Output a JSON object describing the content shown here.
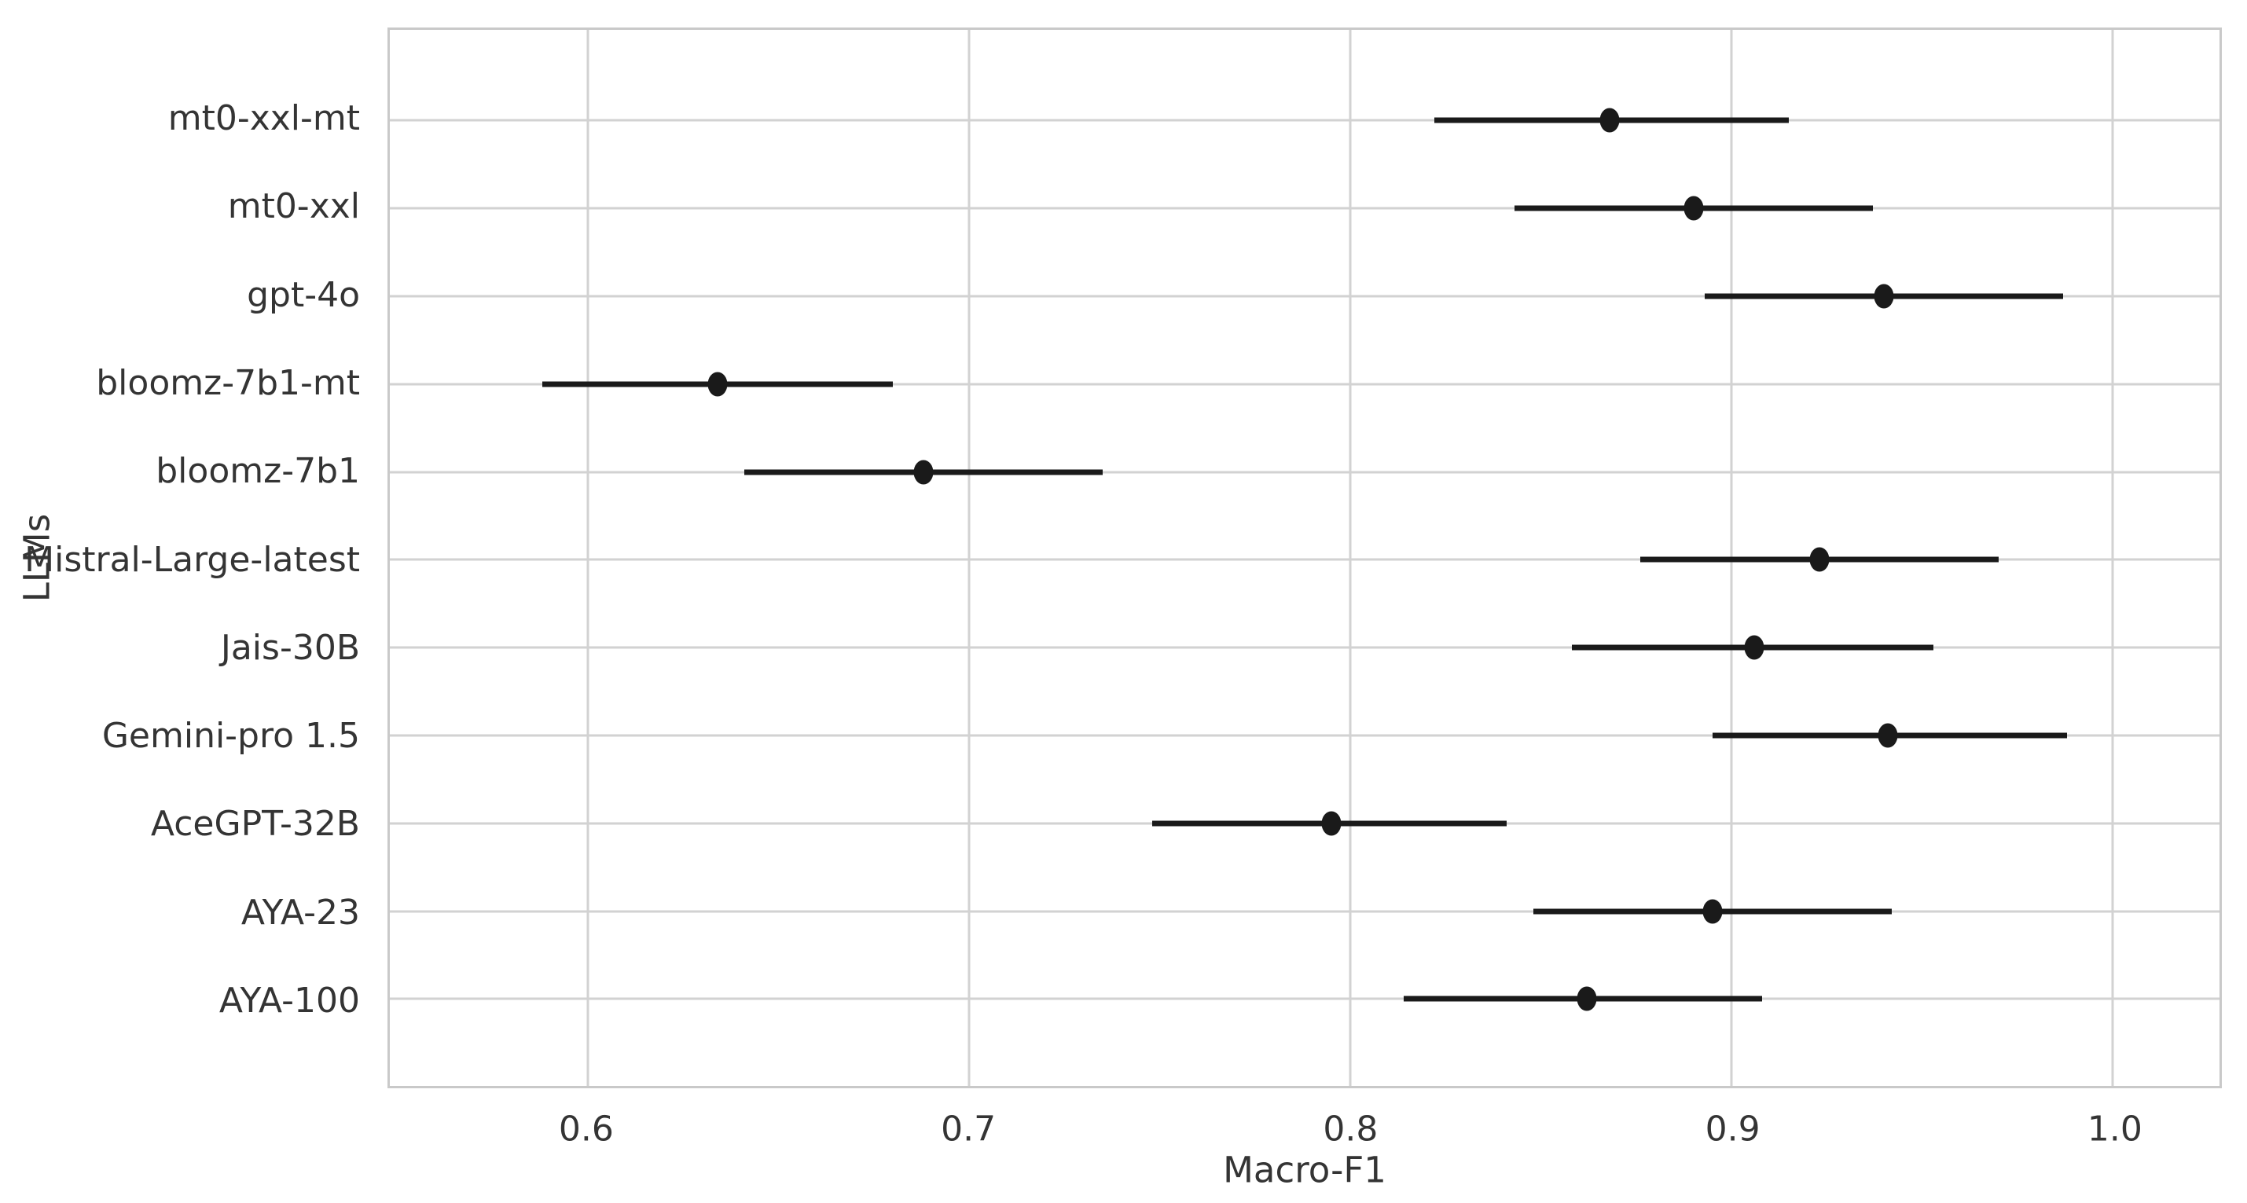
{
  "figure": {
    "background_color": "#ffffff",
    "frame_color": "#c9c9c9",
    "grid_color": "#d2d2d2",
    "marker_color": "#1a1a1a",
    "text_color": "#343434"
  },
  "chart_data": {
    "type": "scatter",
    "variant": "horizontal-dot-plot-with-error-bars",
    "orientation": "horizontal",
    "title": "",
    "xlabel": "Macro-F1",
    "ylabel": "LLMs",
    "categories": [
      "mt0-xxl-mt",
      "mt0-xxl",
      "gpt-4o",
      "bloomz-7b1-mt",
      "bloomz-7b1",
      "Mistral-Large-latest",
      "Jais-30B",
      "Gemini-pro 1.5",
      "AceGPT-32B",
      "AYA-23",
      "AYA-100"
    ],
    "series": [
      {
        "name": "Macro-F1",
        "values": [
          0.868,
          0.89,
          0.94,
          0.634,
          0.688,
          0.923,
          0.906,
          0.941,
          0.795,
          0.895,
          0.862
        ],
        "ci_low": [
          0.822,
          0.843,
          0.893,
          0.588,
          0.641,
          0.876,
          0.858,
          0.895,
          0.748,
          0.848,
          0.814
        ],
        "ci_high": [
          0.915,
          0.937,
          0.987,
          0.68,
          0.735,
          0.97,
          0.953,
          0.988,
          0.841,
          0.942,
          0.908
        ]
      }
    ],
    "xticks": [
      0.6,
      0.7,
      0.8,
      0.9,
      1.0
    ],
    "xtick_labels": [
      "0.6",
      "0.7",
      "0.8",
      "0.9",
      "1.0"
    ],
    "xlim": [
      0.548,
      1.028
    ],
    "grid": true,
    "legend": false
  }
}
